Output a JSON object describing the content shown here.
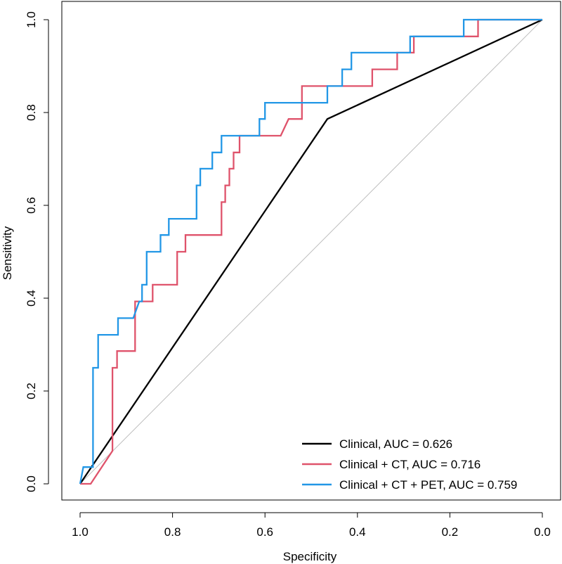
{
  "chart_data": {
    "type": "line",
    "title": "",
    "xlabel": "Specificity",
    "ylabel": "Sensitivity",
    "xlim": [
      1.0,
      0.0
    ],
    "ylim": [
      0.0,
      1.0
    ],
    "x_reversed": true,
    "x_ticks": [
      1.0,
      0.8,
      0.6,
      0.4,
      0.2,
      0.0
    ],
    "x_tick_labels": [
      "1.0",
      "0.8",
      "0.6",
      "0.4",
      "0.2",
      "0.0"
    ],
    "y_ticks": [
      0.0,
      0.2,
      0.4,
      0.6,
      0.8,
      1.0
    ],
    "y_tick_labels": [
      "0.0",
      "0.2",
      "0.4",
      "0.6",
      "0.8",
      "1.0"
    ],
    "grid": false,
    "legend_position": "bottom-right",
    "reference_line": {
      "from": [
        1.0,
        0.0
      ],
      "to": [
        0.0,
        1.0
      ],
      "color": "#bdbdbd"
    },
    "series": [
      {
        "name": "Clinical, AUC = 0.626",
        "color": "#000000",
        "points": [
          [
            1.0,
            0.0
          ],
          [
            0.465,
            0.786
          ],
          [
            0.0,
            1.0
          ]
        ]
      },
      {
        "name": "Clinical + CT, AUC = 0.716",
        "color": "#DF536B",
        "points": [
          [
            1.0,
            0.0
          ],
          [
            0.977,
            0.0
          ],
          [
            0.93,
            0.071
          ],
          [
            0.93,
            0.25
          ],
          [
            0.92,
            0.25
          ],
          [
            0.92,
            0.286
          ],
          [
            0.881,
            0.286
          ],
          [
            0.881,
            0.393
          ],
          [
            0.86,
            0.393
          ],
          [
            0.86,
            0.393
          ],
          [
            0.843,
            0.393
          ],
          [
            0.843,
            0.429
          ],
          [
            0.79,
            0.429
          ],
          [
            0.79,
            0.5
          ],
          [
            0.772,
            0.5
          ],
          [
            0.772,
            0.536
          ],
          [
            0.694,
            0.536
          ],
          [
            0.694,
            0.607
          ],
          [
            0.686,
            0.607
          ],
          [
            0.686,
            0.643
          ],
          [
            0.677,
            0.643
          ],
          [
            0.677,
            0.679
          ],
          [
            0.668,
            0.679
          ],
          [
            0.668,
            0.714
          ],
          [
            0.655,
            0.714
          ],
          [
            0.655,
            0.75
          ],
          [
            0.566,
            0.75
          ],
          [
            0.549,
            0.786
          ],
          [
            0.52,
            0.786
          ],
          [
            0.52,
            0.857
          ],
          [
            0.465,
            0.857
          ],
          [
            0.465,
            0.857
          ],
          [
            0.368,
            0.857
          ],
          [
            0.368,
            0.893
          ],
          [
            0.314,
            0.893
          ],
          [
            0.314,
            0.929
          ],
          [
            0.278,
            0.929
          ],
          [
            0.278,
            0.964
          ],
          [
            0.139,
            0.964
          ],
          [
            0.139,
            1.0
          ],
          [
            0.0,
            1.0
          ]
        ]
      },
      {
        "name": "Clinical + CT + PET, AUC = 0.759",
        "color": "#2297E6",
        "points": [
          [
            1.0,
            0.0
          ],
          [
            0.993,
            0.036
          ],
          [
            0.972,
            0.036
          ],
          [
            0.972,
            0.25
          ],
          [
            0.961,
            0.25
          ],
          [
            0.961,
            0.321
          ],
          [
            0.918,
            0.321
          ],
          [
            0.918,
            0.357
          ],
          [
            0.885,
            0.357
          ],
          [
            0.872,
            0.393
          ],
          [
            0.866,
            0.393
          ],
          [
            0.866,
            0.429
          ],
          [
            0.856,
            0.429
          ],
          [
            0.856,
            0.5
          ],
          [
            0.826,
            0.5
          ],
          [
            0.826,
            0.536
          ],
          [
            0.808,
            0.536
          ],
          [
            0.808,
            0.571
          ],
          [
            0.748,
            0.571
          ],
          [
            0.748,
            0.643
          ],
          [
            0.74,
            0.643
          ],
          [
            0.74,
            0.679
          ],
          [
            0.714,
            0.679
          ],
          [
            0.714,
            0.714
          ],
          [
            0.694,
            0.714
          ],
          [
            0.694,
            0.75
          ],
          [
            0.612,
            0.75
          ],
          [
            0.612,
            0.786
          ],
          [
            0.6,
            0.786
          ],
          [
            0.6,
            0.821
          ],
          [
            0.465,
            0.821
          ],
          [
            0.465,
            0.857
          ],
          [
            0.433,
            0.857
          ],
          [
            0.433,
            0.893
          ],
          [
            0.413,
            0.893
          ],
          [
            0.413,
            0.929
          ],
          [
            0.286,
            0.929
          ],
          [
            0.286,
            0.964
          ],
          [
            0.17,
            0.964
          ],
          [
            0.17,
            1.0
          ],
          [
            0.0,
            1.0
          ]
        ]
      }
    ]
  }
}
